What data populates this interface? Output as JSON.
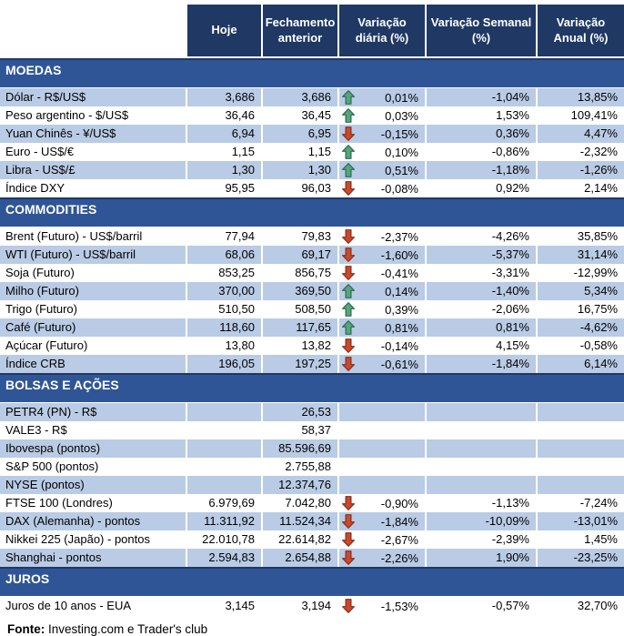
{
  "table": {
    "columns": [
      "Hoje",
      "Fechamento anterior",
      "Variação diária (%)",
      "Variação Semanal (%)",
      "Variação Anual (%)"
    ],
    "sections": [
      {
        "title": "MOEDAS",
        "rows": [
          {
            "label": "Dólar - R$/US$",
            "hoje": "3,686",
            "fechamento": "3,686",
            "arrow": "up",
            "daily": "0,01%",
            "weekly": "-1,04%",
            "annual": "13,85%",
            "shaded": true
          },
          {
            "label": "Peso argentino - $/US$",
            "hoje": "36,46",
            "fechamento": "36,45",
            "arrow": "up",
            "daily": "0,03%",
            "weekly": "1,53%",
            "annual": "109,41%",
            "shaded": false
          },
          {
            "label": "Yuan Chinês - ¥/US$",
            "hoje": "6,94",
            "fechamento": "6,95",
            "arrow": "down",
            "daily": "-0,15%",
            "weekly": "0,36%",
            "annual": "4,47%",
            "shaded": true
          },
          {
            "label": "Euro - US$/€",
            "hoje": "1,15",
            "fechamento": "1,15",
            "arrow": "up",
            "daily": "0,10%",
            "weekly": "-0,86%",
            "annual": "-2,32%",
            "shaded": false
          },
          {
            "label": "Libra - US$/£",
            "hoje": "1,30",
            "fechamento": "1,30",
            "arrow": "up",
            "daily": "0,51%",
            "weekly": "-1,18%",
            "annual": "-1,26%",
            "shaded": true
          },
          {
            "label": "Índice DXY",
            "hoje": "95,95",
            "fechamento": "96,03",
            "arrow": "down",
            "daily": "-0,08%",
            "weekly": "0,92%",
            "annual": "2,14%",
            "shaded": false
          }
        ]
      },
      {
        "title": "COMMODITIES",
        "rows": [
          {
            "label": "Brent (Futuro) - US$/barril",
            "hoje": "77,94",
            "fechamento": "79,83",
            "arrow": "down",
            "daily": "-2,37%",
            "weekly": "-4,26%",
            "annual": "35,85%",
            "shaded": false
          },
          {
            "label": "WTI (Futuro) - US$/barril",
            "hoje": "68,06",
            "fechamento": "69,17",
            "arrow": "down",
            "daily": "-1,60%",
            "weekly": "-5,37%",
            "annual": "31,14%",
            "shaded": true
          },
          {
            "label": "Soja (Futuro)",
            "hoje": "853,25",
            "fechamento": "856,75",
            "arrow": "down",
            "daily": "-0,41%",
            "weekly": "-3,31%",
            "annual": "-12,99%",
            "shaded": false
          },
          {
            "label": "Milho (Futuro)",
            "hoje": "370,00",
            "fechamento": "369,50",
            "arrow": "up",
            "daily": "0,14%",
            "weekly": "-1,40%",
            "annual": "5,34%",
            "shaded": true
          },
          {
            "label": "Trigo (Futuro)",
            "hoje": "510,50",
            "fechamento": "508,50",
            "arrow": "up",
            "daily": "0,39%",
            "weekly": "-2,06%",
            "annual": "16,75%",
            "shaded": false
          },
          {
            "label": "Café (Futuro)",
            "hoje": "118,60",
            "fechamento": "117,65",
            "arrow": "up",
            "daily": "0,81%",
            "weekly": "0,81%",
            "annual": "-4,62%",
            "shaded": true
          },
          {
            "label": "Açúcar (Futuro)",
            "hoje": "13,80",
            "fechamento": "13,82",
            "arrow": "down",
            "daily": "-0,14%",
            "weekly": "4,15%",
            "annual": "-0,58%",
            "shaded": false
          },
          {
            "label": "Índice CRB",
            "hoje": "196,05",
            "fechamento": "197,25",
            "arrow": "down",
            "daily": "-0,61%",
            "weekly": "-1,84%",
            "annual": "6,14%",
            "shaded": true
          }
        ]
      },
      {
        "title": "BOLSAS E AÇÕES",
        "rows": [
          {
            "label": "PETR4 (PN) - R$",
            "hoje": "",
            "fechamento": "26,53",
            "arrow": "",
            "daily": "",
            "weekly": "",
            "annual": "",
            "shaded": true
          },
          {
            "label": "VALE3 - R$",
            "hoje": "",
            "fechamento": "58,37",
            "arrow": "",
            "daily": "",
            "weekly": "",
            "annual": "",
            "shaded": false
          },
          {
            "label": "Ibovespa (pontos)",
            "hoje": "",
            "fechamento": "85.596,69",
            "arrow": "",
            "daily": "",
            "weekly": "",
            "annual": "",
            "shaded": true
          },
          {
            "label": "S&P 500 (pontos)",
            "hoje": "",
            "fechamento": "2.755,88",
            "arrow": "",
            "daily": "",
            "weekly": "",
            "annual": "",
            "shaded": false
          },
          {
            "label": "NYSE (pontos)",
            "hoje": "",
            "fechamento": "12.374,76",
            "arrow": "",
            "daily": "",
            "weekly": "",
            "annual": "",
            "shaded": true
          },
          {
            "label": "FTSE 100 (Londres)",
            "hoje": "6.979,69",
            "fechamento": "7.042,80",
            "arrow": "down",
            "daily": "-0,90%",
            "weekly": "-1,13%",
            "annual": "-7,24%",
            "shaded": false
          },
          {
            "label": "DAX (Alemanha) - pontos",
            "hoje": "11.311,92",
            "fechamento": "11.524,34",
            "arrow": "down",
            "daily": "-1,84%",
            "weekly": "-10,09%",
            "annual": "-13,01%",
            "shaded": true
          },
          {
            "label": "Nikkei 225 (Japão) - pontos",
            "hoje": "22.010,78",
            "fechamento": "22.614,82",
            "arrow": "down",
            "daily": "-2,67%",
            "weekly": "-2,39%",
            "annual": "1,45%",
            "shaded": false
          },
          {
            "label": "Shanghai - pontos",
            "hoje": "2.594,83",
            "fechamento": "2.654,88",
            "arrow": "down",
            "daily": "-2,26%",
            "weekly": "1,90%",
            "annual": "-23,25%",
            "shaded": true
          }
        ]
      },
      {
        "title": "JUROS",
        "rows": [
          {
            "label": "Juros de 10 anos - EUA",
            "hoje": "3,145",
            "fechamento": "3,194",
            "arrow": "down",
            "daily": "-1,53%",
            "weekly": "-0,57%",
            "annual": "32,70%",
            "shaded": false
          }
        ]
      }
    ]
  },
  "footer": {
    "label": "Fonte:",
    "text": " Investing.com e Trader's club"
  },
  "icons": {
    "up": "up-arrow-icon",
    "down": "down-arrow-icon"
  },
  "colors": {
    "header_bg": "#1F3864",
    "section_bg": "#2F5597",
    "section_border_top": "#1F3864",
    "row_shaded_bg": "#B9CBE5",
    "row_white_bg": "#FFFFFF",
    "header_text": "#FFFFFF",
    "body_text": "#000000",
    "arrow_up_fill": "#55A57D",
    "arrow_up_stroke": "#2E6B50",
    "arrow_down_fill": "#C74A2C",
    "arrow_down_stroke": "#8B2D1B"
  }
}
